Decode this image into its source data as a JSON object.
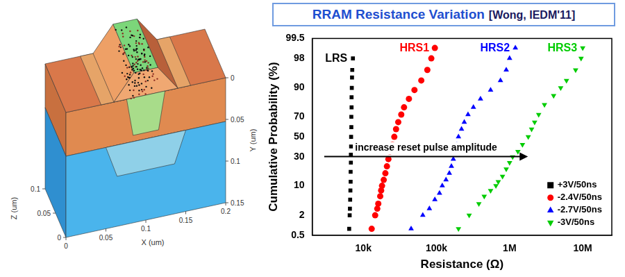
{
  "chart_data": {
    "type": "scatter",
    "title": "RRAM Resistance Variation",
    "subtitle": "[Wong, IEDM'11]",
    "x_label": "Resistance (Ω)",
    "y_label": "Cumulative Probability (%)",
    "log": "x",
    "xlim": [
      2000,
      25000000
    ],
    "xticks": [
      {
        "value": 10000,
        "label": "10k"
      },
      {
        "value": 100000,
        "label": "100k"
      },
      {
        "value": 1000000,
        "label": "1M"
      },
      {
        "value": 10000000,
        "label": "10M"
      }
    ],
    "ylim": [
      0.5,
      99.5
    ],
    "yticks": [
      0.5,
      2,
      10,
      30,
      50,
      70,
      90,
      98,
      99.5
    ],
    "grid": false,
    "legend": "lower right",
    "series": [
      {
        "name": "+3V/50ns",
        "color": "#000000",
        "marker": "square",
        "x": [
          6400,
          6500,
          6550,
          6600,
          6650,
          6700,
          6700,
          6750,
          6750,
          6800,
          6800,
          6850,
          6850,
          6900,
          6900,
          6950,
          7000,
          7050,
          7200
        ],
        "y": [
          0.8,
          2,
          3,
          5,
          8,
          12,
          18,
          25,
          32,
          40,
          50,
          60,
          70,
          78,
          85,
          90,
          94,
          96,
          98
        ]
      },
      {
        "name": "-2.4V/50ns",
        "color": "#ff0000",
        "marker": "circle",
        "x": [
          13000,
          14500,
          15500,
          16000,
          17000,
          17500,
          18000,
          19000,
          20000,
          21000,
          22000,
          23000,
          25000,
          26500,
          28000,
          30000,
          33000,
          36000,
          42000,
          50000,
          62000,
          75000,
          85000,
          95000
        ],
        "y": [
          0.8,
          2,
          3,
          4,
          6,
          8,
          10,
          13,
          17,
          22,
          28,
          35,
          42,
          50,
          58,
          65,
          72,
          78,
          84,
          89,
          93,
          96,
          98,
          99
        ]
      },
      {
        "name": "-2.7V/50ns",
        "color": "#0000ff",
        "marker": "triangle",
        "x": [
          45000,
          65000,
          80000,
          95000,
          110000,
          120000,
          135000,
          150000,
          160000,
          170000,
          180000,
          190000,
          200000,
          220000,
          240000,
          270000,
          320000,
          400000,
          550000,
          750000,
          900000,
          1000000,
          1200000
        ],
        "y": [
          0.8,
          2,
          3,
          5,
          7,
          10,
          13,
          17,
          22,
          28,
          35,
          42,
          50,
          58,
          65,
          72,
          78,
          84,
          89,
          93,
          96,
          98,
          99
        ]
      },
      {
        "name": "-3V/50ns",
        "color": "#00cc00",
        "marker": "triangle-down",
        "x": [
          200000,
          280000,
          380000,
          450000,
          550000,
          650000,
          700000,
          800000,
          900000,
          1000000,
          1100000,
          1300000,
          1500000,
          1800000,
          2000000,
          2200000,
          2500000,
          3000000,
          4000000,
          5000000,
          6000000,
          8000000,
          9500000,
          10000000
        ],
        "y": [
          0.8,
          2,
          4,
          6,
          8,
          10,
          12,
          15,
          20,
          25,
          30,
          35,
          42,
          50,
          58,
          65,
          72,
          80,
          86,
          90,
          93,
          96,
          98,
          99
        ]
      }
    ],
    "annotations": [
      {
        "text": "LRS",
        "series": 0
      },
      {
        "text": "HRS1",
        "series": 1
      },
      {
        "text": "HRS2",
        "series": 2
      },
      {
        "text": "HRS3",
        "series": 3
      },
      {
        "text": "increase reset pulse amplitude",
        "arrow": true
      }
    ]
  },
  "device_image": {
    "x_label": "X (um)",
    "y_label": "Y (um)",
    "z_label": "Z (um)",
    "xticks": [
      0,
      0.05,
      0.1,
      0.15,
      0.2
    ],
    "yticks": [
      0,
      0.05,
      0.1,
      0.15
    ],
    "zticks": [
      0,
      0.05,
      0.1
    ]
  }
}
